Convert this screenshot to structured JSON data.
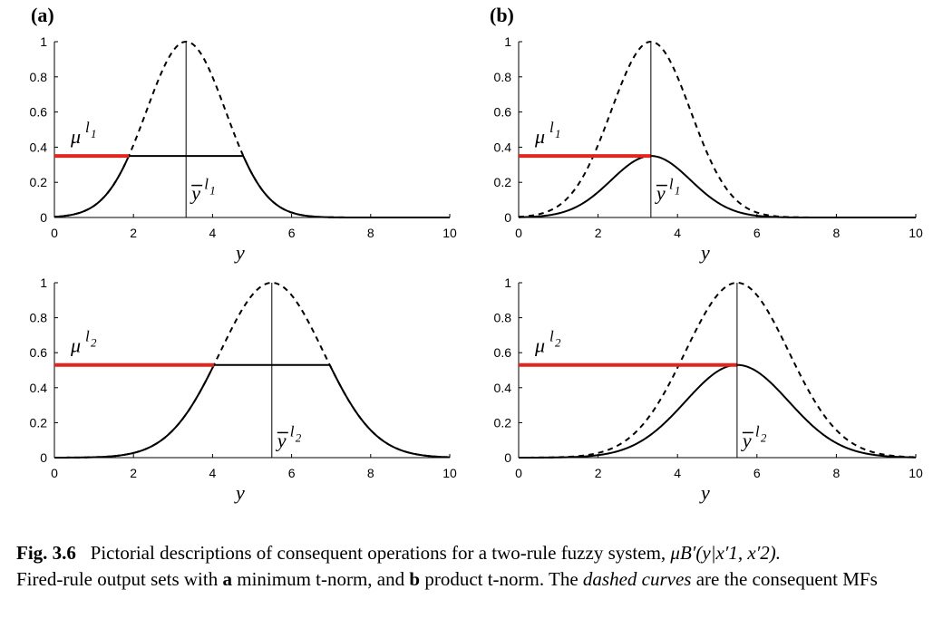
{
  "panel_labels": [
    "(a)",
    "(b)"
  ],
  "chart_data": [
    {
      "type": "line",
      "panel": "(a)",
      "xlabel": "y",
      "xlim": [
        0,
        10
      ],
      "ylim": [
        0,
        1
      ],
      "xticks": [
        0,
        2,
        4,
        6,
        8,
        10
      ],
      "yticks": [
        0,
        0.2,
        0.4,
        0.6,
        0.8,
        1
      ],
      "grid": false,
      "consequent_mf": {
        "style": "dashed",
        "center": 3.33,
        "sigma": 1.0,
        "peak": 1
      },
      "firing_level": 0.35,
      "tnorm": "minimum",
      "annotations": {
        "mu_base": "μ",
        "mu_sup": "l",
        "mu_subsup": "1",
        "y_base": "y",
        "y_sup": "l",
        "y_subsup": "1"
      },
      "x_marker": 3.33
    },
    {
      "type": "line",
      "panel": "(b)",
      "xlabel": "y",
      "xlim": [
        0,
        10
      ],
      "ylim": [
        0,
        1
      ],
      "xticks": [
        0,
        2,
        4,
        6,
        8,
        10
      ],
      "yticks": [
        0,
        0.2,
        0.4,
        0.6,
        0.8,
        1
      ],
      "grid": false,
      "consequent_mf": {
        "style": "dashed",
        "center": 3.33,
        "sigma": 1.0,
        "peak": 1
      },
      "firing_level": 0.35,
      "tnorm": "product",
      "annotations": {
        "mu_base": "μ",
        "mu_sup": "l",
        "mu_subsup": "1",
        "y_base": "y",
        "y_sup": "l",
        "y_subsup": "1"
      },
      "x_marker": 3.33
    },
    {
      "type": "line",
      "panel": "(a)",
      "xlabel": "y",
      "xlim": [
        0,
        10
      ],
      "ylim": [
        0,
        1
      ],
      "xticks": [
        0,
        2,
        4,
        6,
        8,
        10
      ],
      "yticks": [
        0,
        0.2,
        0.4,
        0.6,
        0.8,
        1
      ],
      "grid": false,
      "consequent_mf": {
        "style": "dashed",
        "center": 5.5,
        "sigma": 1.3,
        "peak": 1
      },
      "firing_level": 0.53,
      "tnorm": "minimum",
      "annotations": {
        "mu_base": "μ",
        "mu_sup": "l",
        "mu_subsup": "2",
        "y_base": "y",
        "y_sup": "l",
        "y_subsup": "2"
      },
      "x_marker": 5.5
    },
    {
      "type": "line",
      "panel": "(b)",
      "xlabel": "y",
      "xlim": [
        0,
        10
      ],
      "ylim": [
        0,
        1
      ],
      "xticks": [
        0,
        2,
        4,
        6,
        8,
        10
      ],
      "yticks": [
        0,
        0.2,
        0.4,
        0.6,
        0.8,
        1
      ],
      "grid": false,
      "consequent_mf": {
        "style": "dashed",
        "center": 5.5,
        "sigma": 1.3,
        "peak": 1
      },
      "firing_level": 0.53,
      "tnorm": "product",
      "annotations": {
        "mu_base": "μ",
        "mu_sup": "l",
        "mu_subsup": "2",
        "y_base": "y",
        "y_sup": "l",
        "y_subsup": "2"
      },
      "x_marker": 5.5
    }
  ],
  "colors": {
    "firing_line": "#e0261f",
    "curve": "#000000"
  },
  "caption": {
    "fig_label": "Fig. 3.6",
    "text1": "Pictorial descriptions of consequent operations for a two-rule fuzzy system, ",
    "formula": "μB′(y|x′1, x′2).",
    "text2": "Fired-rule output sets with ",
    "a": "a",
    "text3": " minimum t-norm, and ",
    "b": "b",
    "text4": " product t-norm. The ",
    "dashed": "dashed curves",
    "text5": " are the consequent MFs"
  }
}
